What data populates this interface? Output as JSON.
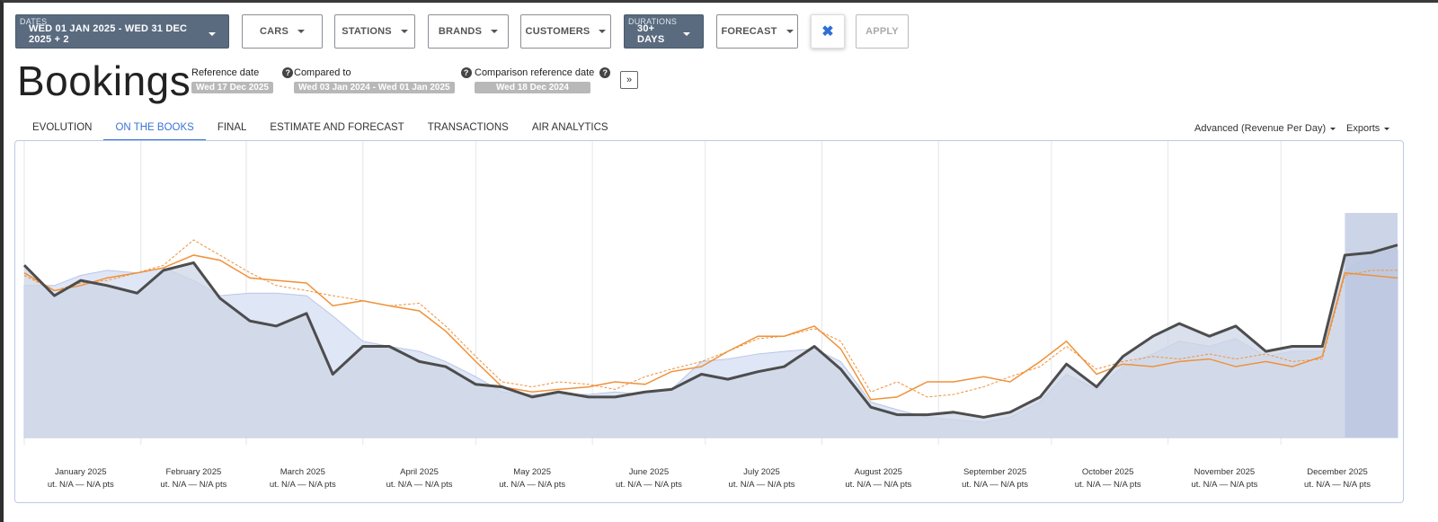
{
  "filters": {
    "dates": {
      "small": "DATES",
      "value": "WED 01 JAN 2025 - WED 31 DEC 2025 + 2"
    },
    "cars": "CARS",
    "stations": "STATIONS",
    "brands": "BRANDS",
    "customers": "CUSTOMERS",
    "durations": {
      "small": "DURATIONS",
      "value": "30+ DAYS"
    },
    "forecast": "FORECAST",
    "clear_icon": "✖",
    "apply": "APPLY"
  },
  "page": {
    "title": "Bookings",
    "reference_label": "Reference date",
    "reference_value": "Wed 17 Dec 2025",
    "compared_label": "Compared to",
    "compared_value": "Wed 03 Jan 2024 - Wed 01 Jan 2025",
    "comparison_ref_label": "Comparison reference date",
    "comparison_ref_value": "Wed 18 Dec 2024",
    "expand_icon": "»"
  },
  "tabs": [
    "EVOLUTION",
    "ON THE BOOKS",
    "FINAL",
    "ESTIMATE AND FORECAST",
    "TRANSACTIONS",
    "AIR ANALYTICS"
  ],
  "active_tab": "ON THE BOOKS",
  "menus": {
    "advanced": "Advanced (Revenue Per Day)",
    "exports": "Exports"
  },
  "colors": {
    "current": "#4d4d4d",
    "comparison": "#f0913a",
    "area": "#cdd5e6",
    "accent": "#3b74d6",
    "dark_button": "#5a6b7f"
  },
  "chart_data": {
    "type": "line",
    "title": "",
    "xlabel": "",
    "ylabel": "",
    "ylim": [
      0,
      100
    ],
    "x_axis": {
      "months": [
        "January 2025",
        "February 2025",
        "March 2025",
        "April 2025",
        "May 2025",
        "June 2025",
        "July 2025",
        "August 2025",
        "September 2025",
        "October 2025",
        "November 2025",
        "December 2025"
      ],
      "sublabel": "ut. N/A — N/A pts"
    },
    "x_day": [
      0,
      8,
      15,
      22,
      30,
      37,
      45,
      52,
      60,
      67,
      75,
      82,
      90,
      97,
      105,
      112,
      120,
      127,
      135,
      142,
      150,
      157,
      165,
      172,
      180,
      187,
      195,
      202,
      210,
      217,
      225,
      232,
      240,
      247,
      255,
      262,
      270,
      277,
      285,
      292,
      300,
      307,
      315,
      322,
      330,
      337,
      345,
      351,
      358,
      365
    ],
    "series": [
      {
        "name": "Current",
        "style": "thick-dark",
        "values": [
          68,
          56,
          62,
          60,
          57,
          66,
          69,
          55,
          46,
          44,
          49,
          25,
          36,
          36,
          30,
          28,
          21,
          20,
          16,
          18,
          16,
          16,
          18,
          19,
          25,
          23,
          26,
          28,
          36,
          27,
          12,
          9,
          9,
          10,
          8,
          10,
          16,
          29,
          20,
          32,
          40,
          45,
          40,
          44,
          34,
          36,
          36,
          72,
          73,
          76
        ]
      },
      {
        "name": "Comparison",
        "style": "orange",
        "values": [
          65,
          58,
          60,
          63,
          65,
          67,
          72,
          70,
          63,
          62,
          61,
          52,
          54,
          52,
          50,
          42,
          30,
          20,
          18,
          19,
          20,
          22,
          21,
          26,
          28,
          34,
          40,
          40,
          44,
          35,
          15,
          16,
          22,
          22,
          24,
          22,
          30,
          38,
          25,
          29,
          28,
          30,
          31,
          28,
          30,
          28,
          32,
          65,
          64,
          63
        ]
      },
      {
        "name": "Comparison (dotted)",
        "style": "orange-dashed",
        "values": [
          64,
          58,
          61,
          62,
          65,
          68,
          78,
          72,
          65,
          60,
          58,
          56,
          54,
          52,
          53,
          44,
          32,
          22,
          20,
          22,
          21,
          19,
          24,
          27,
          30,
          34,
          39,
          40,
          43,
          38,
          18,
          22,
          16,
          17,
          20,
          24,
          28,
          36,
          27,
          30,
          32,
          31,
          33,
          31,
          33,
          30,
          31,
          64,
          66,
          66
        ]
      },
      {
        "name": "Reference area",
        "style": "area",
        "values": [
          60,
          60,
          64,
          66,
          65,
          67,
          62,
          56,
          57,
          57,
          56,
          48,
          38,
          36,
          34,
          30,
          24,
          18,
          17,
          17,
          17,
          18,
          17,
          19,
          30,
          31,
          33,
          34,
          35,
          30,
          14,
          11,
          8,
          7,
          6,
          8,
          14,
          25,
          19,
          28,
          33,
          38,
          36,
          39,
          32,
          34,
          34,
          66,
          72,
          74
        ]
      }
    ]
  }
}
